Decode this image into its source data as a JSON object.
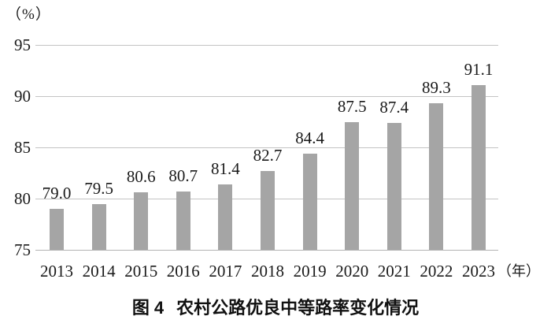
{
  "figure": {
    "y_unit": "（%）",
    "x_unit": "（年）",
    "caption_prefix": "图 4",
    "caption_text": "农村公路优良中等路率变化情况"
  },
  "chart_data": {
    "type": "bar",
    "title": "图 4 农村公路优良中等路率变化情况",
    "categories": [
      "2013",
      "2014",
      "2015",
      "2016",
      "2017",
      "2018",
      "2019",
      "2020",
      "2021",
      "2022",
      "2023"
    ],
    "values": [
      79.0,
      79.5,
      80.6,
      80.7,
      81.4,
      82.7,
      84.4,
      87.5,
      87.4,
      89.3,
      91.1
    ],
    "value_labels": [
      "79.0",
      "79.5",
      "80.6",
      "80.7",
      "81.4",
      "82.7",
      "84.4",
      "87.5",
      "87.4",
      "89.3",
      "91.1"
    ],
    "xlabel": "（年）",
    "ylabel": "（%）",
    "ylim": [
      75,
      95
    ],
    "yticks": [
      75,
      80,
      85,
      90,
      95
    ],
    "grid": true,
    "legend_position": "none",
    "bar_color": "#a5a5a5",
    "gridline_color": "#c4c4c4",
    "axis_line_color": "#b3b3b3",
    "text_color": "#1a1a1a"
  }
}
